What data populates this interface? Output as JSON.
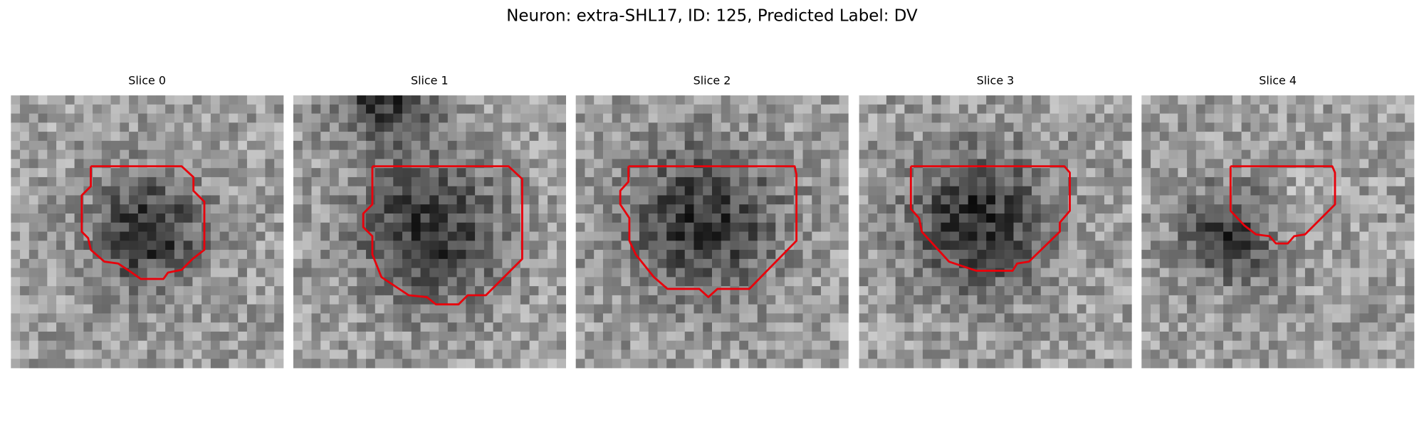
{
  "title": "Neuron: extra-SHL17, ID: 125, Predicted Label: DV",
  "panels": [
    {
      "title": "Slice 0"
    },
    {
      "title": "Slice 1"
    },
    {
      "title": "Slice 2"
    },
    {
      "title": "Slice 3"
    },
    {
      "title": "Slice 4"
    }
  ]
}
